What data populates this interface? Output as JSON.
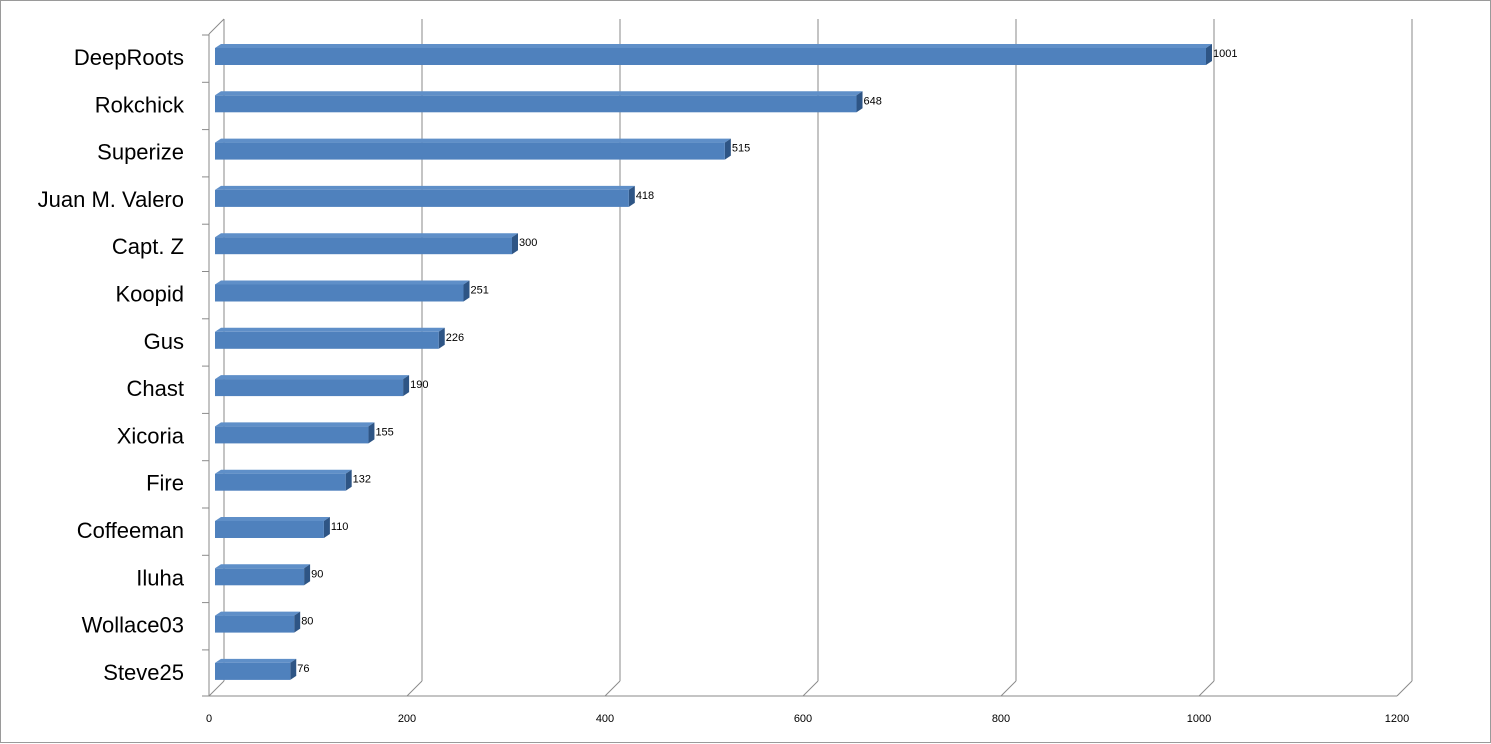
{
  "chart_data": {
    "type": "bar",
    "orientation": "horizontal",
    "style": "3d",
    "title": "",
    "xlabel": "",
    "ylabel": "",
    "categories": [
      "DeepRoots",
      "Rokchick",
      "Superize",
      "Juan M. Valero",
      "Capt. Z",
      "Koopid",
      "Gus",
      "Chast",
      "Xicoria",
      "Fire",
      "Coffeeman",
      "Iluha",
      "Wollace03",
      "Steve25"
    ],
    "values": [
      1001,
      648,
      515,
      418,
      300,
      251,
      226,
      190,
      155,
      132,
      110,
      90,
      80,
      76
    ],
    "xlim": [
      0,
      1200
    ],
    "xticks": [
      "0",
      "200",
      "400",
      "600",
      "800",
      "1000",
      "1200"
    ],
    "grid": "vertical major gridlines",
    "legend": "none",
    "data_labels": true,
    "colors": {
      "bar_front": "#4F81BD",
      "bar_top": "#5F8FC8",
      "bar_side": "#2E5585",
      "gridline": "#8a8a8a",
      "frame": "#9a9a9a"
    }
  }
}
